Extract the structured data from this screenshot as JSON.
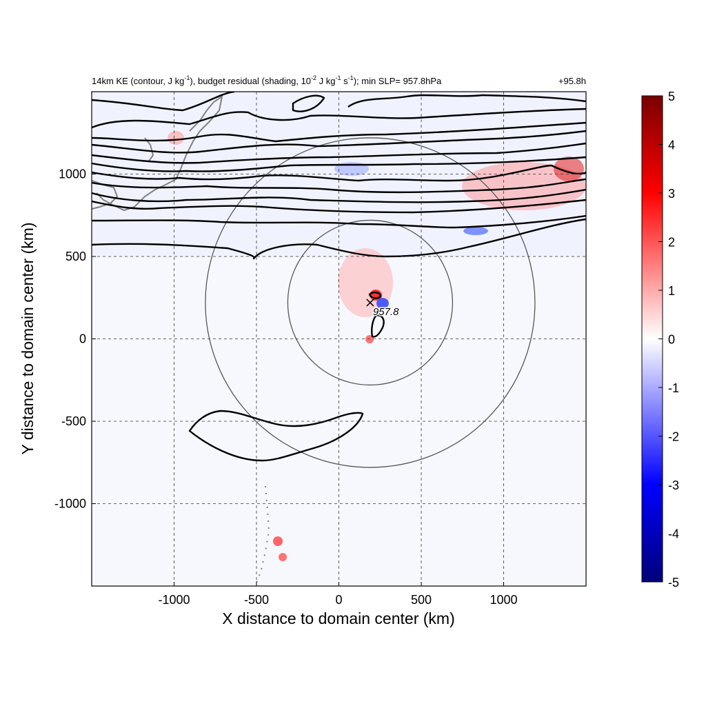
{
  "chart_data": {
    "type": "heatmap",
    "title_left_parts": {
      "p1": "14km KE (contour, J kg",
      "p1_sup": "-1",
      "p2": "), budget residual (shading, 10",
      "p2_sup": "-2",
      "p3": " J kg",
      "p3_sup": "-1",
      "p4": " s",
      "p4_sup": "-1",
      "p5": "); min SLP= 957.8hPa"
    },
    "title_right": "+95.8h",
    "xlabel": "X distance to domain center (km)",
    "ylabel": "Y distance to domain center (km)",
    "xlim": [
      -1500,
      1500
    ],
    "ylim": [
      -1500,
      1500
    ],
    "xticks": [
      -1000,
      -500,
      0,
      500,
      1000
    ],
    "yticks": [
      -1000,
      -500,
      0,
      500,
      1000
    ],
    "grid": true,
    "colorbar": {
      "min": -5,
      "max": 5,
      "ticks": [
        5,
        4,
        3,
        2,
        1,
        0,
        -1,
        -2,
        -3,
        -4,
        -5
      ],
      "colormap": [
        "#00007a",
        "#0000ff",
        "#ffffff",
        "#ff0000",
        "#7a0000"
      ]
    },
    "storm_center": {
      "x": 190,
      "y": 220,
      "label": "957.8"
    },
    "range_rings_km": [
      500,
      1000
    ],
    "colors": {
      "contour": "#000000",
      "coastline": "#808080",
      "ring": "#555555",
      "positive": "#ff0000",
      "negative": "#0000ff"
    }
  }
}
